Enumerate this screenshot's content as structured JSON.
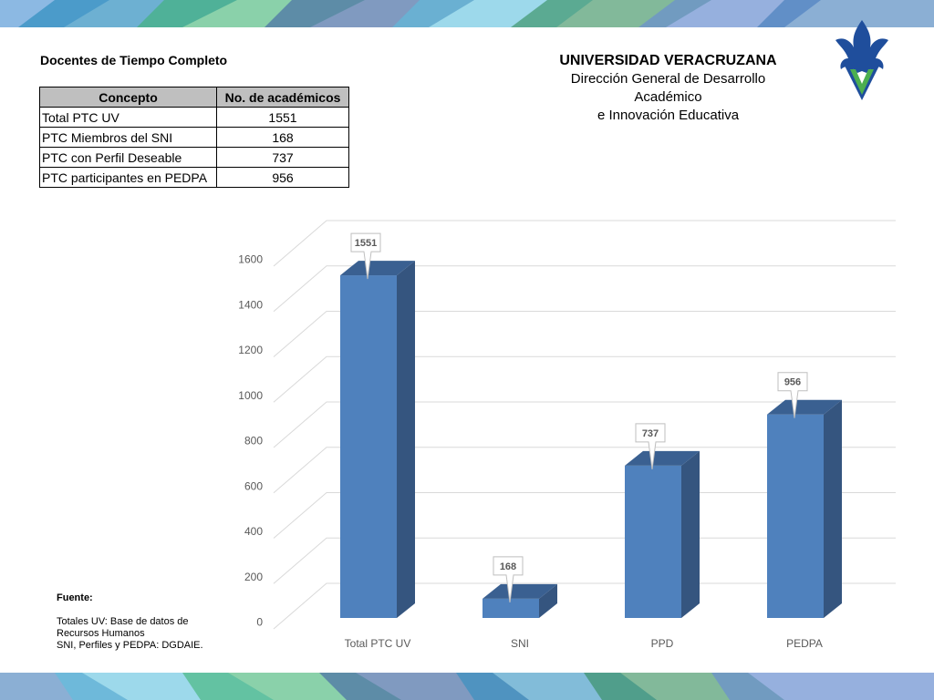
{
  "header": {
    "title": "Docentes de Tiempo Completo",
    "university": "UNIVERSIDAD VERACRUZANA",
    "department_line1": "Dirección General de Desarrollo Académico",
    "department_line2": "e Innovación Educativa"
  },
  "table": {
    "headers": [
      "Concepto",
      "No. de académicos"
    ],
    "rows": [
      [
        "Total PTC UV",
        "1551"
      ],
      [
        "PTC Miembros del SNI",
        "168"
      ],
      [
        "PTC con Perfil Deseable",
        "737"
      ],
      [
        "PTC participantes en PEDPA",
        "956"
      ]
    ]
  },
  "source": {
    "label": "Fuente:",
    "line1": "Totales UV: Base de datos de",
    "line2": "Recursos Humanos",
    "line3": "SNI, Perfiles y PEDPA: DGDAIE."
  },
  "colors": {
    "bar_front": "#4f81bd",
    "bar_side": "#35557f",
    "bar_top": "#3a6091",
    "grid": "#d9d9d9",
    "axis_text": "#595959"
  },
  "chart_data": {
    "type": "bar",
    "categories": [
      "Total PTC UV",
      "SNI",
      "PPD",
      "PEDPA"
    ],
    "values": [
      1551,
      168,
      737,
      956
    ],
    "data_labels": [
      "1551",
      "168",
      "737",
      "956"
    ],
    "ylim": [
      0,
      1600
    ],
    "yticks": [
      "0",
      "200",
      "400",
      "600",
      "800",
      "1000",
      "1200",
      "1400",
      "1600"
    ],
    "title": "",
    "xlabel": "",
    "ylabel": "",
    "style": "3d-column",
    "grid": true
  }
}
